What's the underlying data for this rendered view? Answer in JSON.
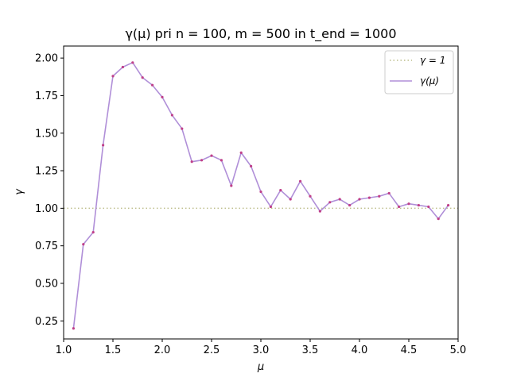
{
  "chart_data": {
    "type": "line",
    "title": "γ(μ) pri n = 100, m = 500 in t_end = 1000",
    "xlabel": "μ",
    "ylabel": "γ",
    "xlim": [
      1.0,
      5.0
    ],
    "ylim": [
      0.13,
      2.08
    ],
    "x_ticks": [
      1.0,
      1.5,
      2.0,
      2.5,
      3.0,
      3.5,
      4.0,
      4.5,
      5.0
    ],
    "x_tick_labels": [
      "1.0",
      "1.5",
      "2.0",
      "2.5",
      "3.0",
      "3.5",
      "4.0",
      "4.5",
      "5.0"
    ],
    "y_ticks": [
      0.25,
      0.5,
      0.75,
      1.0,
      1.25,
      1.5,
      1.75,
      2.0
    ],
    "y_tick_labels": [
      "0.25",
      "0.50",
      "0.75",
      "1.00",
      "1.25",
      "1.50",
      "1.75",
      "2.00"
    ],
    "grid": false,
    "legend_position": "top-right",
    "reference_line": {
      "name": "γ = 1",
      "y": 1.0,
      "style": "dotted",
      "color": "#bcbd8a"
    },
    "series": [
      {
        "name": "γ(μ)",
        "color": "#b08fd8",
        "marker_color": "#c0408a",
        "x": [
          1.1,
          1.2,
          1.3,
          1.4,
          1.5,
          1.6,
          1.7,
          1.8,
          1.9,
          2.0,
          2.1,
          2.2,
          2.3,
          2.4,
          2.5,
          2.6,
          2.7,
          2.8,
          2.9,
          3.0,
          3.1,
          3.2,
          3.3,
          3.4,
          3.5,
          3.6,
          3.7,
          3.8,
          3.9,
          4.0,
          4.1,
          4.2,
          4.3,
          4.4,
          4.5,
          4.6,
          4.7,
          4.8,
          4.9
        ],
        "values": [
          0.2,
          0.76,
          0.84,
          1.42,
          1.88,
          1.94,
          1.97,
          1.87,
          1.82,
          1.74,
          1.62,
          1.53,
          1.31,
          1.32,
          1.35,
          1.32,
          1.15,
          1.37,
          1.28,
          1.11,
          1.01,
          1.12,
          1.06,
          1.18,
          1.08,
          0.98,
          1.04,
          1.06,
          1.02,
          1.06,
          1.07,
          1.08,
          1.1,
          1.01,
          1.03,
          1.02,
          1.01,
          0.93,
          1.02
        ]
      }
    ]
  }
}
